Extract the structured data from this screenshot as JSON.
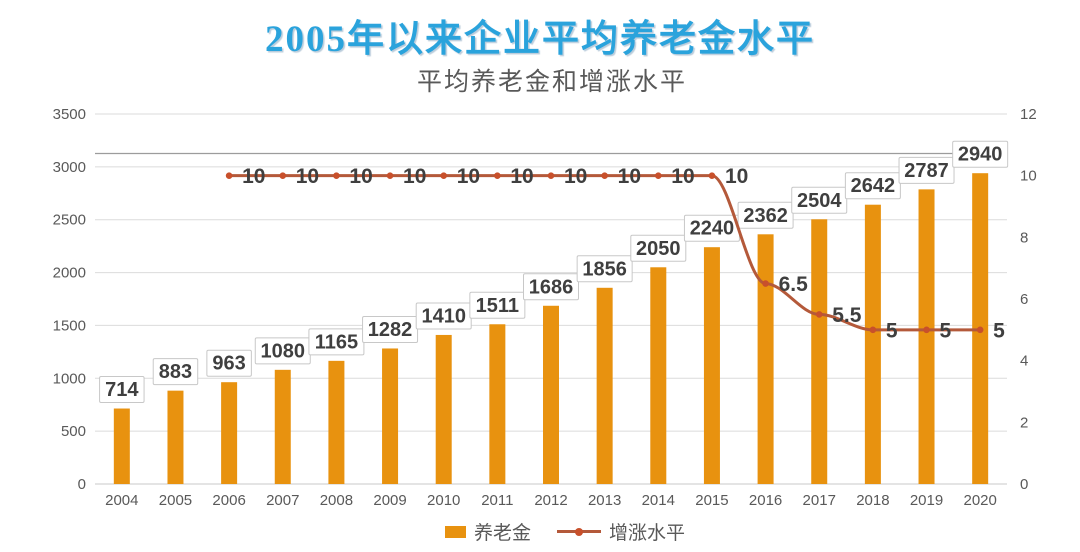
{
  "header": {
    "title": "2005年以来企业平均养老金水平",
    "subtitle": "平均养老金和增涨水平"
  },
  "chart_data": {
    "type": "combo-bar-line",
    "title": "平均养老金和增涨水平",
    "categories": [
      "2004",
      "2005",
      "2006",
      "2007",
      "2008",
      "2009",
      "2010",
      "2011",
      "2012",
      "2013",
      "2014",
      "2015",
      "2016",
      "2017",
      "2018",
      "2019",
      "2020"
    ],
    "series": [
      {
        "name": "养老金",
        "type": "bar",
        "axis": "left",
        "values": [
          714,
          883,
          963,
          1080,
          1165,
          1282,
          1410,
          1511,
          1686,
          1856,
          2050,
          2240,
          2362,
          2504,
          2642,
          2787,
          2940
        ]
      },
      {
        "name": "增涨水平",
        "type": "line",
        "axis": "right",
        "values": [
          null,
          null,
          10,
          10,
          10,
          10,
          10,
          10,
          10,
          10,
          10,
          10,
          6.5,
          5.5,
          5,
          5,
          5
        ]
      }
    ],
    "left_axis": {
      "min": 0,
      "max": 3500,
      "step": 500,
      "ticks": [
        "0",
        "500",
        "1000",
        "1500",
        "2000",
        "2500",
        "3000",
        "3500"
      ]
    },
    "right_axis": {
      "min": 0,
      "max": 12,
      "step": 2,
      "ticks": [
        "0",
        "2",
        "4",
        "6",
        "8",
        "10",
        "12"
      ]
    },
    "grid": true,
    "legend_position": "bottom",
    "legend": [
      {
        "label": "养老金",
        "swatch": "bar"
      },
      {
        "label": "增涨水平",
        "swatch": "line-marker"
      }
    ],
    "annotations": [
      {
        "type": "hline",
        "axis": "right",
        "value": 10.72
      }
    ],
    "colors": {
      "bar": "#E8920F",
      "line": "#B4593A",
      "marker": "#C8502B",
      "title": "#2AA3DC",
      "axis_text": "#595959",
      "data_label_text": "#3F3F3F",
      "gridline": "#DBDBDB",
      "baseline": "#C9C9C9",
      "reference_line": "#9C9C9C",
      "label_box_border": "#C8C8C8",
      "label_box_fill": "#FFFFFF"
    }
  }
}
